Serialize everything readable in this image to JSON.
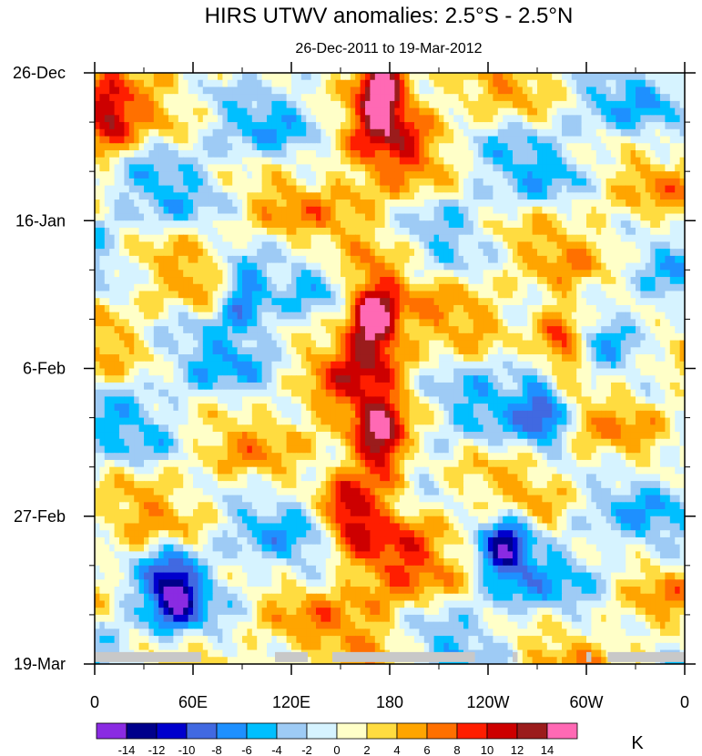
{
  "chart_data": {
    "type": "heatmap",
    "title": "HIRS UTWV anomalies: 2.5°S - 2.5°N",
    "subtitle": "26-Dec-2011 to 19-Mar-2012",
    "x_ticks": [
      "0",
      "60E",
      "120E",
      "180",
      "120W",
      "60W",
      "0"
    ],
    "x_tick_values": [
      0,
      60,
      120,
      180,
      240,
      300,
      360
    ],
    "xlim": [
      0,
      360
    ],
    "y_ticks": [
      "26-Dec",
      "16-Jan",
      "6-Feb",
      "27-Feb",
      "19-Mar"
    ],
    "y_tick_days": [
      0,
      21,
      42,
      63,
      84
    ],
    "ylim_days": [
      0,
      84
    ],
    "colorbar": {
      "unit": "K",
      "labels": [
        "-14",
        "-12",
        "-10",
        "-8",
        "-6",
        "-4",
        "-2",
        "0",
        "2",
        "4",
        "6",
        "8",
        "10",
        "12",
        "14"
      ],
      "colors": [
        "#8a2be2",
        "#00008b",
        "#0000cd",
        "#4169e1",
        "#1e90ff",
        "#00bfff",
        "#9ecbf5",
        "#d6f3ff",
        "#ffffc8",
        "#ffdc40",
        "#ffa500",
        "#ff7000",
        "#ff1e00",
        "#cd0000",
        "#9b1c1c",
        "#ff69b4"
      ]
    },
    "missing_color": "#c8c8c8",
    "features": [
      {
        "name": "strong positive anomaly core",
        "lon": 170,
        "day": 35,
        "value": 15
      },
      {
        "name": "positive anomaly core",
        "lon": 175,
        "day": 53,
        "value": 14
      },
      {
        "name": "positive anomaly",
        "lon": 155,
        "day": 62,
        "value": 10
      },
      {
        "name": "positive anomaly near dateline top",
        "lon": 175,
        "day": 2,
        "value": 15
      },
      {
        "name": "narrow positive band",
        "lon": 285,
        "day": 38,
        "value": 13
      },
      {
        "name": "positive anomaly west",
        "lon": 8,
        "day": 7,
        "value": 10
      },
      {
        "name": "negative anomaly",
        "lon": 48,
        "day": 73,
        "value": -11
      },
      {
        "name": "negative anomaly",
        "lon": 250,
        "day": 67,
        "value": -11
      },
      {
        "name": "negative anomaly",
        "lon": 275,
        "day": 48,
        "value": -9
      },
      {
        "name": "negative anomaly",
        "lon": 90,
        "day": 31,
        "value": -9
      }
    ]
  }
}
